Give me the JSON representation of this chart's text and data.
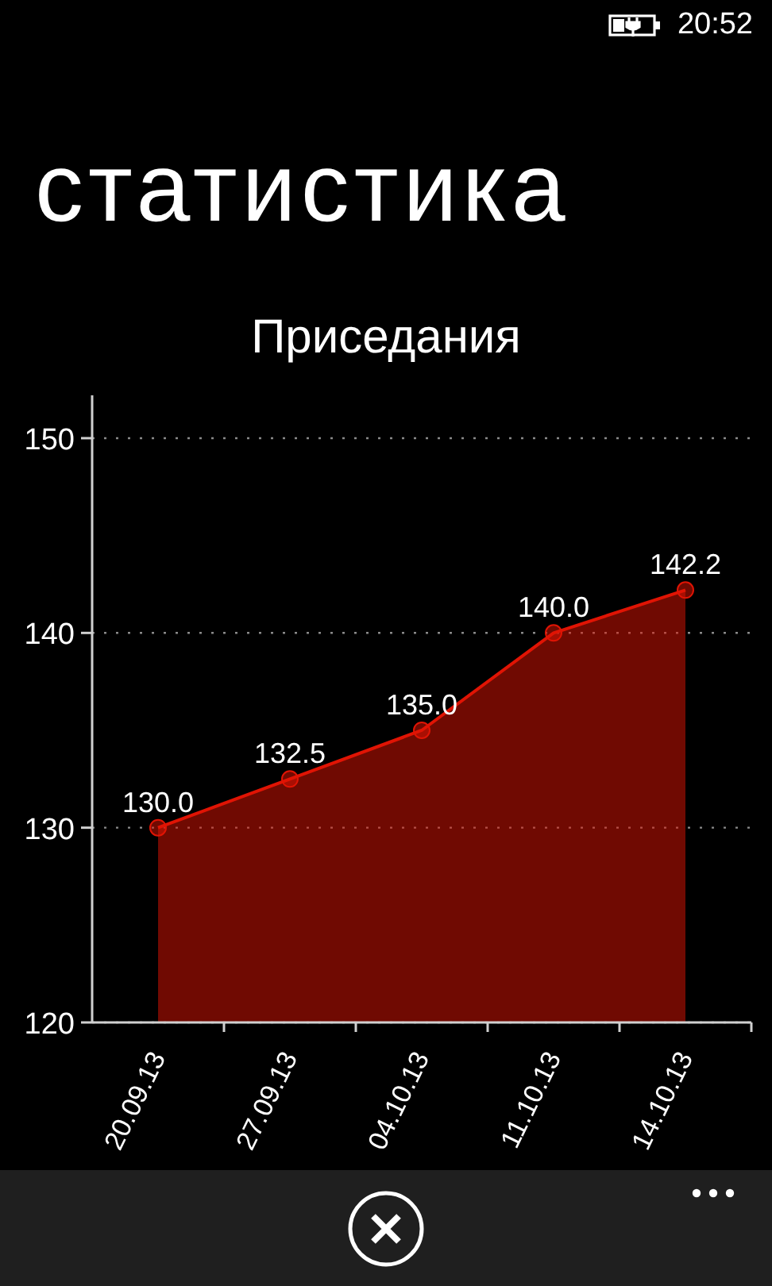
{
  "chart_data": {
    "type": "area",
    "title": "Приседания",
    "annotations": [
      "20:52",
      "статистика"
    ],
    "categories": [
      "20.09.13",
      "27.09.13",
      "04.10.13",
      "11.10.13",
      "14.10.13"
    ],
    "values": [
      130,
      132.5,
      135,
      140,
      142.2
    ],
    "value_labels": [
      "130.0",
      "132.5",
      "135.0",
      "140.0",
      "142.2"
    ],
    "color": "#e01404",
    "ylim": [
      120,
      152.2
    ],
    "yticks": [
      120,
      130,
      140,
      150
    ],
    "grid": "y",
    "marker": "circle",
    "line_style": "solid"
  }
}
